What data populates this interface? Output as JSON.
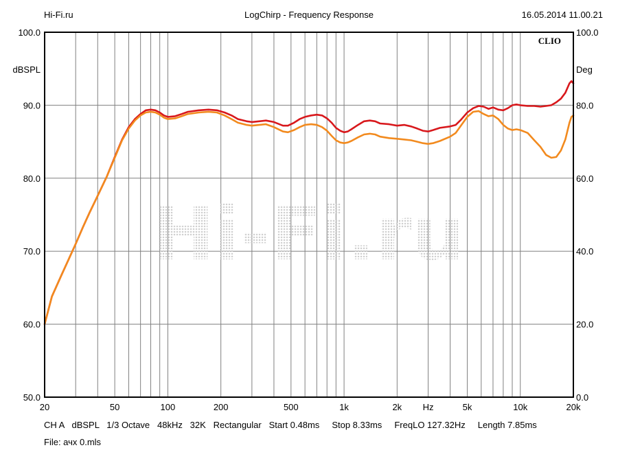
{
  "header": {
    "left": "Hi-Fi.ru",
    "center": "LogChirp - Frequency Response",
    "right": "16.05.2014 11.00.21"
  },
  "brand": "CLIO",
  "watermark": "Hi-Fi.ru",
  "footer": {
    "line1": "CH A   dBSPL   1/3 Octave   48kHz   32K   Rectangular   Start 0.48ms     Stop 8.33ms     FreqLO 127.32Hz     Length 7.85ms",
    "line2": "File: ачх 0.mls"
  },
  "colors": {
    "series1": "#d8181c",
    "series2": "#f28a1e",
    "grid": "#808080",
    "background": "#ffffff"
  },
  "chart_data": {
    "type": "line",
    "x_scale": "log",
    "xlim": [
      20,
      20000
    ],
    "ylim": [
      50,
      100
    ],
    "y2lim": [
      0,
      100
    ],
    "ylabel": "dBSPL",
    "y2label": "Deg",
    "grid": true,
    "x_tick_labels": [
      {
        "value": 20,
        "label": "20"
      },
      {
        "value": 50,
        "label": "50"
      },
      {
        "value": 100,
        "label": "100"
      },
      {
        "value": 200,
        "label": "200"
      },
      {
        "value": 500,
        "label": "500"
      },
      {
        "value": 1000,
        "label": "1k"
      },
      {
        "value": 2000,
        "label": "2k"
      },
      {
        "value": 3000,
        "label": "Hz"
      },
      {
        "value": 5000,
        "label": "5k"
      },
      {
        "value": 10000,
        "label": "10k"
      },
      {
        "value": 20000,
        "label": "20k"
      }
    ],
    "y_tick_labels": [
      "50.0",
      "60.0",
      "70.0",
      "80.0",
      "90.0",
      "100.0"
    ],
    "y2_tick_labels": [
      "0.0",
      "20.0",
      "40.0",
      "60.0",
      "80.0",
      "100.0"
    ],
    "series": [
      {
        "color": "#d8181c",
        "points": [
          [
            20,
            60.0
          ],
          [
            22,
            63.8
          ],
          [
            25,
            66.8
          ],
          [
            28,
            69.4
          ],
          [
            30,
            71.0
          ],
          [
            33,
            73.3
          ],
          [
            36,
            75.3
          ],
          [
            40,
            77.6
          ],
          [
            45,
            80.2
          ],
          [
            50,
            82.9
          ],
          [
            55,
            85.3
          ],
          [
            60,
            87.0
          ],
          [
            65,
            88.1
          ],
          [
            70,
            88.8
          ],
          [
            75,
            89.3
          ],
          [
            80,
            89.4
          ],
          [
            85,
            89.3
          ],
          [
            90,
            89.0
          ],
          [
            95,
            88.6
          ],
          [
            100,
            88.4
          ],
          [
            110,
            88.5
          ],
          [
            120,
            88.8
          ],
          [
            130,
            89.1
          ],
          [
            150,
            89.3
          ],
          [
            170,
            89.4
          ],
          [
            190,
            89.3
          ],
          [
            210,
            89.0
          ],
          [
            230,
            88.6
          ],
          [
            250,
            88.1
          ],
          [
            280,
            87.8
          ],
          [
            300,
            87.7
          ],
          [
            330,
            87.8
          ],
          [
            360,
            87.9
          ],
          [
            400,
            87.7
          ],
          [
            450,
            87.2
          ],
          [
            480,
            87.2
          ],
          [
            520,
            87.6
          ],
          [
            560,
            88.1
          ],
          [
            600,
            88.4
          ],
          [
            650,
            88.6
          ],
          [
            700,
            88.7
          ],
          [
            750,
            88.6
          ],
          [
            800,
            88.2
          ],
          [
            850,
            87.6
          ],
          [
            900,
            86.9
          ],
          [
            950,
            86.5
          ],
          [
            1000,
            86.3
          ],
          [
            1050,
            86.4
          ],
          [
            1100,
            86.7
          ],
          [
            1200,
            87.3
          ],
          [
            1300,
            87.8
          ],
          [
            1400,
            87.9
          ],
          [
            1500,
            87.8
          ],
          [
            1600,
            87.5
          ],
          [
            1800,
            87.4
          ],
          [
            2000,
            87.2
          ],
          [
            2200,
            87.3
          ],
          [
            2400,
            87.1
          ],
          [
            2600,
            86.8
          ],
          [
            2800,
            86.5
          ],
          [
            3000,
            86.4
          ],
          [
            3200,
            86.6
          ],
          [
            3500,
            86.9
          ],
          [
            4000,
            87.1
          ],
          [
            4300,
            87.3
          ],
          [
            4600,
            88.0
          ],
          [
            5000,
            89.0
          ],
          [
            5400,
            89.6
          ],
          [
            5800,
            89.9
          ],
          [
            6200,
            89.8
          ],
          [
            6600,
            89.5
          ],
          [
            7000,
            89.7
          ],
          [
            7500,
            89.4
          ],
          [
            8000,
            89.3
          ],
          [
            8500,
            89.6
          ],
          [
            9000,
            90.0
          ],
          [
            9500,
            90.1
          ],
          [
            10000,
            90.0
          ],
          [
            11000,
            89.9
          ],
          [
            12000,
            89.9
          ],
          [
            13000,
            89.8
          ],
          [
            14000,
            89.9
          ],
          [
            15000,
            90.0
          ],
          [
            16000,
            90.4
          ],
          [
            17000,
            90.9
          ],
          [
            18000,
            91.7
          ],
          [
            19000,
            93.0
          ],
          [
            19500,
            93.3
          ],
          [
            20000,
            93.0
          ]
        ]
      },
      {
        "color": "#f28a1e",
        "points": [
          [
            20,
            60.0
          ],
          [
            22,
            63.8
          ],
          [
            25,
            66.8
          ],
          [
            28,
            69.4
          ],
          [
            30,
            71.0
          ],
          [
            33,
            73.3
          ],
          [
            36,
            75.3
          ],
          [
            40,
            77.6
          ],
          [
            45,
            80.2
          ],
          [
            50,
            82.8
          ],
          [
            55,
            85.2
          ],
          [
            60,
            86.8
          ],
          [
            65,
            87.9
          ],
          [
            70,
            88.6
          ],
          [
            75,
            89.0
          ],
          [
            80,
            89.1
          ],
          [
            85,
            89.0
          ],
          [
            90,
            88.7
          ],
          [
            95,
            88.3
          ],
          [
            100,
            88.1
          ],
          [
            110,
            88.2
          ],
          [
            120,
            88.5
          ],
          [
            130,
            88.8
          ],
          [
            150,
            89.0
          ],
          [
            170,
            89.1
          ],
          [
            190,
            89.0
          ],
          [
            210,
            88.6
          ],
          [
            230,
            88.1
          ],
          [
            250,
            87.6
          ],
          [
            280,
            87.3
          ],
          [
            300,
            87.2
          ],
          [
            330,
            87.3
          ],
          [
            360,
            87.4
          ],
          [
            400,
            87.0
          ],
          [
            450,
            86.4
          ],
          [
            480,
            86.3
          ],
          [
            520,
            86.6
          ],
          [
            560,
            87.0
          ],
          [
            600,
            87.3
          ],
          [
            650,
            87.4
          ],
          [
            700,
            87.3
          ],
          [
            750,
            87.0
          ],
          [
            800,
            86.5
          ],
          [
            850,
            85.8
          ],
          [
            900,
            85.2
          ],
          [
            950,
            84.9
          ],
          [
            1000,
            84.8
          ],
          [
            1050,
            84.9
          ],
          [
            1100,
            85.1
          ],
          [
            1200,
            85.6
          ],
          [
            1300,
            86.0
          ],
          [
            1400,
            86.1
          ],
          [
            1500,
            86.0
          ],
          [
            1600,
            85.7
          ],
          [
            1800,
            85.5
          ],
          [
            2000,
            85.4
          ],
          [
            2200,
            85.3
          ],
          [
            2400,
            85.2
          ],
          [
            2600,
            85.0
          ],
          [
            2800,
            84.8
          ],
          [
            3000,
            84.7
          ],
          [
            3200,
            84.8
          ],
          [
            3500,
            85.1
          ],
          [
            4000,
            85.7
          ],
          [
            4300,
            86.2
          ],
          [
            4600,
            87.2
          ],
          [
            5000,
            88.4
          ],
          [
            5400,
            89.1
          ],
          [
            5800,
            89.2
          ],
          [
            6200,
            88.8
          ],
          [
            6600,
            88.5
          ],
          [
            7000,
            88.6
          ],
          [
            7500,
            88.1
          ],
          [
            8000,
            87.3
          ],
          [
            8500,
            86.8
          ],
          [
            9000,
            86.6
          ],
          [
            9500,
            86.7
          ],
          [
            10000,
            86.6
          ],
          [
            11000,
            86.2
          ],
          [
            12000,
            85.2
          ],
          [
            13000,
            84.3
          ],
          [
            14000,
            83.2
          ],
          [
            15000,
            82.8
          ],
          [
            16000,
            82.9
          ],
          [
            17000,
            83.8
          ],
          [
            18000,
            85.3
          ],
          [
            19000,
            87.6
          ],
          [
            19500,
            88.4
          ],
          [
            20000,
            88.6
          ]
        ]
      }
    ]
  }
}
